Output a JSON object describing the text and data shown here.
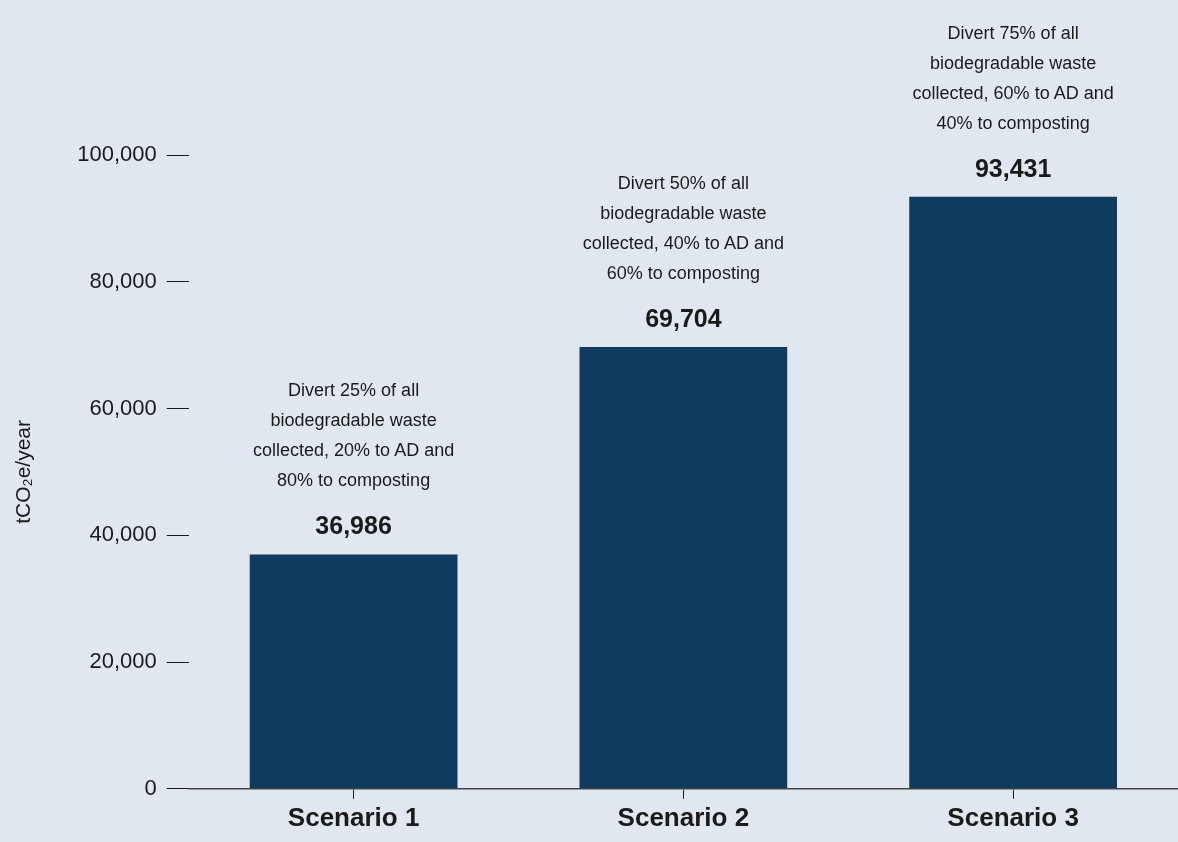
{
  "chart_data": {
    "type": "bar",
    "ylabel": "tCO₂e/year",
    "categories": [
      "Scenario 1",
      "Scenario 2",
      "Scenario 3"
    ],
    "values": [
      36986,
      69704,
      93431
    ],
    "color": "#113a5f",
    "ylim": [
      0,
      100000
    ],
    "yticks": [
      {
        "value": 0,
        "label": "0"
      },
      {
        "value": 20000,
        "label": "20,000"
      },
      {
        "value": 40000,
        "label": "40,000"
      },
      {
        "value": 60000,
        "label": "60,000"
      },
      {
        "value": 80000,
        "label": "80,000"
      },
      {
        "value": 100000,
        "label": "100,000"
      }
    ],
    "value_labels": [
      "36,986",
      "69,704",
      "93,431"
    ],
    "grid": false,
    "legend": false,
    "annotations": [
      "Divert 25% of all biodegradable waste collected, 20% to AD and 80% to composting",
      "Divert 50% of all biodegradable waste collected, 40% to AD and 60% to composting",
      "Divert 75% of all biodegradable waste collected, 60% to AD and 40% to composting"
    ]
  }
}
